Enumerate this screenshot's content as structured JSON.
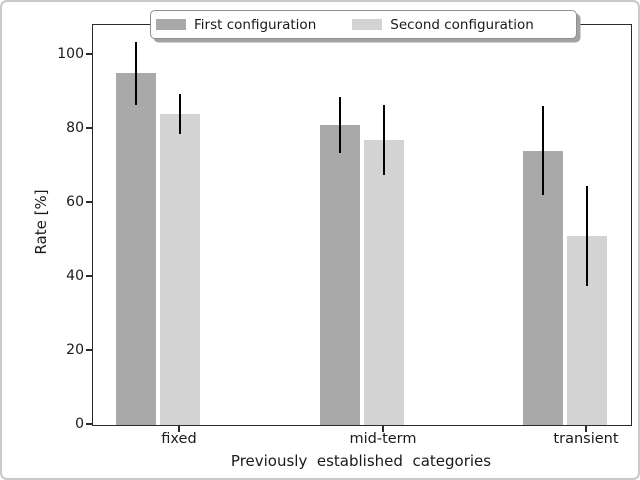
{
  "chart_data": {
    "type": "bar",
    "title": "",
    "xlabel": "Previously  established  categories",
    "ylabel": "Rate [%]",
    "categories": [
      "fixed",
      "mid-term",
      "transient"
    ],
    "series": [
      {
        "name": "First configuration",
        "color": "#a9a9a9",
        "values": [
          95,
          81,
          74
        ],
        "yerr": [
          8.5,
          7.5,
          12
        ]
      },
      {
        "name": "Second configuration",
        "color": "#d3d3d3",
        "values": [
          84,
          77,
          51
        ],
        "yerr": [
          5.5,
          9.5,
          13.5
        ]
      }
    ],
    "ylim": [
      0,
      108
    ],
    "yticks": [
      0,
      20,
      40,
      60,
      80,
      100
    ],
    "grid": false,
    "legend_position": "upper center",
    "legend_columns": 2,
    "error_bars": true,
    "error_bar_color": "#000000"
  }
}
